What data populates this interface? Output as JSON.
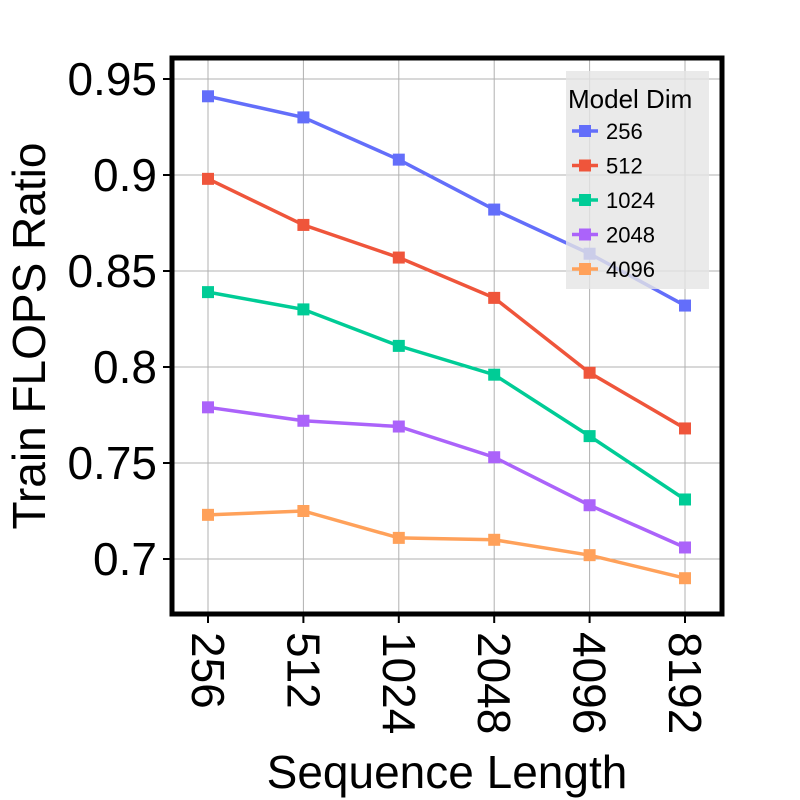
{
  "chart_data": {
    "type": "line",
    "title": "",
    "xlabel": "Sequence Length",
    "ylabel": "Train FLOPS Ratio",
    "categories": [
      "256",
      "512",
      "1024",
      "2048",
      "4096",
      "8192"
    ],
    "y_ticks": [
      "0.7",
      "0.75",
      "0.8",
      "0.85",
      "0.9",
      "0.95"
    ],
    "ylim": [
      0.67,
      0.96
    ],
    "grid": true,
    "legend": {
      "title": "Model Dim",
      "placement": "top-right"
    },
    "series": [
      {
        "name": "256",
        "color": "#636efa",
        "values": [
          0.941,
          0.93,
          0.908,
          0.882,
          0.859,
          0.832
        ]
      },
      {
        "name": "512",
        "color": "#ef553b",
        "values": [
          0.898,
          0.874,
          0.857,
          0.836,
          0.797,
          0.768
        ]
      },
      {
        "name": "1024",
        "color": "#00cc96",
        "values": [
          0.839,
          0.83,
          0.811,
          0.796,
          0.764,
          0.731
        ]
      },
      {
        "name": "2048",
        "color": "#ab63fa",
        "values": [
          0.779,
          0.772,
          0.769,
          0.753,
          0.728,
          0.706
        ]
      },
      {
        "name": "4096",
        "color": "#ffa15a",
        "values": [
          0.723,
          0.725,
          0.711,
          0.71,
          0.702,
          0.69
        ]
      }
    ]
  }
}
